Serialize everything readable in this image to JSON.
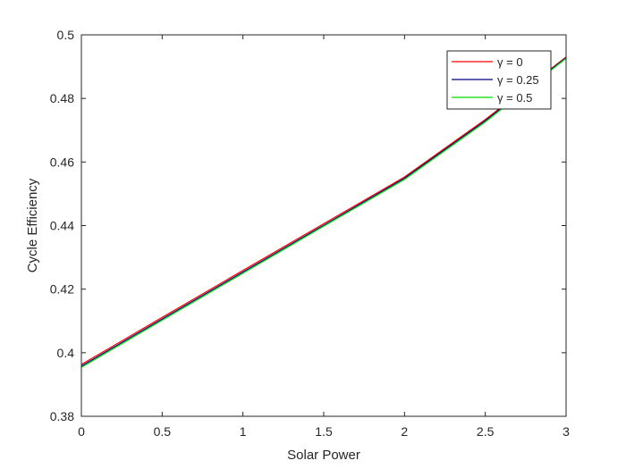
{
  "chart_data": {
    "type": "line",
    "title": "",
    "xlabel": "Solar Power",
    "ylabel": "Cycle Efficiency",
    "xlim": [
      0,
      3
    ],
    "ylim": [
      0.38,
      0.5
    ],
    "xticks": [
      "0",
      "0.5",
      "1",
      "1.5",
      "2",
      "2.5",
      "3"
    ],
    "yticks": [
      "0.38",
      "0.4",
      "0.42",
      "0.44",
      "0.46",
      "0.48",
      "0.5"
    ],
    "grid": false,
    "legend_position": "top-right",
    "series": [
      {
        "name": "γ = 0",
        "color": "#ff0000",
        "x": [
          0,
          0.5,
          1,
          1.5,
          2,
          2.5,
          3
        ],
        "y": [
          0.3963,
          0.4111,
          0.4259,
          0.4406,
          0.4553,
          0.4734,
          0.493
        ]
      },
      {
        "name": "γ = 0.25",
        "color": "#000080",
        "x": [
          0,
          0.5,
          1,
          1.5,
          2,
          2.5,
          3
        ],
        "y": [
          0.3958,
          0.4106,
          0.4254,
          0.4401,
          0.4549,
          0.473,
          0.4928
        ]
      },
      {
        "name": "γ = 0.5",
        "color": "#00dd00",
        "x": [
          0,
          0.5,
          1,
          1.5,
          2,
          2.5,
          3
        ],
        "y": [
          0.3954,
          0.4102,
          0.425,
          0.4398,
          0.4545,
          0.4726,
          0.4926
        ]
      }
    ]
  }
}
